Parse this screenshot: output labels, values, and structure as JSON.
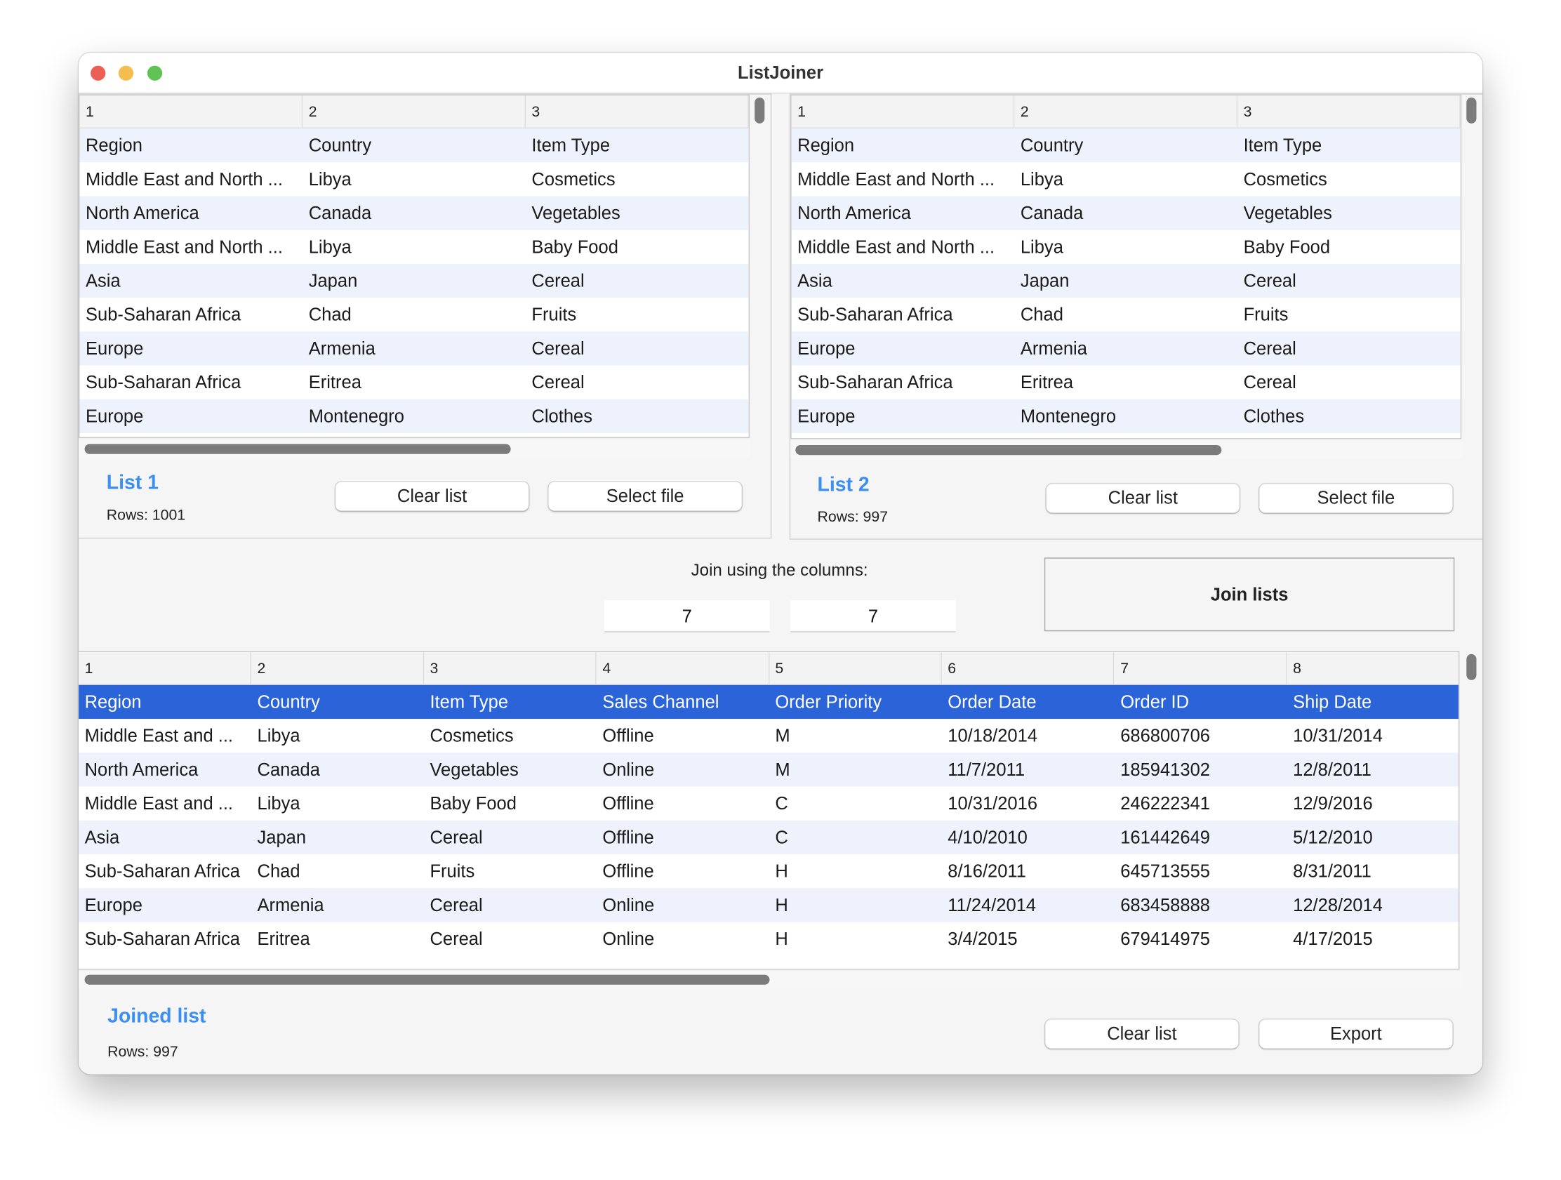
{
  "window": {
    "title": "ListJoiner",
    "traffic_lights": {
      "close": "#ec5f57",
      "minimize": "#f4bd4f",
      "zoom": "#61c354"
    }
  },
  "list1": {
    "columns": [
      "1",
      "2",
      "3"
    ],
    "rows": [
      [
        "Region",
        "Country",
        "Item Type"
      ],
      [
        "Middle East and North ...",
        "Libya",
        "Cosmetics"
      ],
      [
        "North America",
        "Canada",
        "Vegetables"
      ],
      [
        "Middle East and North ...",
        "Libya",
        "Baby Food"
      ],
      [
        "Asia",
        "Japan",
        "Cereal"
      ],
      [
        "Sub-Saharan Africa",
        "Chad",
        "Fruits"
      ],
      [
        "Europe",
        "Armenia",
        "Cereal"
      ],
      [
        "Sub-Saharan Africa",
        "Eritrea",
        "Cereal"
      ],
      [
        "Europe",
        "Montenegro",
        "Clothes"
      ]
    ],
    "label": "List 1",
    "rows_text": "Rows: 1001",
    "clear_label": "Clear list",
    "select_label": "Select file"
  },
  "list2": {
    "columns": [
      "1",
      "2",
      "3"
    ],
    "rows": [
      [
        "Region",
        "Country",
        "Item Type"
      ],
      [
        "Middle East and North ...",
        "Libya",
        "Cosmetics"
      ],
      [
        "North America",
        "Canada",
        "Vegetables"
      ],
      [
        "Middle East and North ...",
        "Libya",
        "Baby Food"
      ],
      [
        "Asia",
        "Japan",
        "Cereal"
      ],
      [
        "Sub-Saharan Africa",
        "Chad",
        "Fruits"
      ],
      [
        "Europe",
        "Armenia",
        "Cereal"
      ],
      [
        "Sub-Saharan Africa",
        "Eritrea",
        "Cereal"
      ],
      [
        "Europe",
        "Montenegro",
        "Clothes"
      ]
    ],
    "label": "List 2",
    "rows_text": "Rows: 997",
    "clear_label": "Clear list",
    "select_label": "Select file"
  },
  "join": {
    "prompt": "Join using the columns:",
    "column1": "7",
    "column2": "7",
    "button_label": "Join lists"
  },
  "joined": {
    "columns": [
      "1",
      "2",
      "3",
      "4",
      "5",
      "6",
      "7",
      "8"
    ],
    "rows": [
      [
        "Region",
        "Country",
        "Item Type",
        "Sales Channel",
        "Order Priority",
        "Order Date",
        "Order ID",
        "Ship Date"
      ],
      [
        "Middle East and ...",
        "Libya",
        "Cosmetics",
        "Offline",
        "M",
        "10/18/2014",
        "686800706",
        "10/31/2014"
      ],
      [
        "North America",
        "Canada",
        "Vegetables",
        "Online",
        "M",
        "11/7/2011",
        "185941302",
        "12/8/2011"
      ],
      [
        "Middle East and ...",
        "Libya",
        "Baby Food",
        "Offline",
        "C",
        "10/31/2016",
        "246222341",
        "12/9/2016"
      ],
      [
        "Asia",
        "Japan",
        "Cereal",
        "Offline",
        "C",
        "4/10/2010",
        "161442649",
        "5/12/2010"
      ],
      [
        "Sub-Saharan Africa",
        "Chad",
        "Fruits",
        "Offline",
        "H",
        "8/16/2011",
        "645713555",
        "8/31/2011"
      ],
      [
        "Europe",
        "Armenia",
        "Cereal",
        "Online",
        "H",
        "11/24/2014",
        "683458888",
        "12/28/2014"
      ],
      [
        "Sub-Saharan Africa",
        "Eritrea",
        "Cereal",
        "Online",
        "H",
        "3/4/2015",
        "679414975",
        "4/17/2015"
      ]
    ],
    "selected_row": 0,
    "label": "Joined list",
    "rows_text": "Rows: 997",
    "clear_label": "Clear list",
    "export_label": "Export",
    "selection_color": "#2a64d8"
  }
}
